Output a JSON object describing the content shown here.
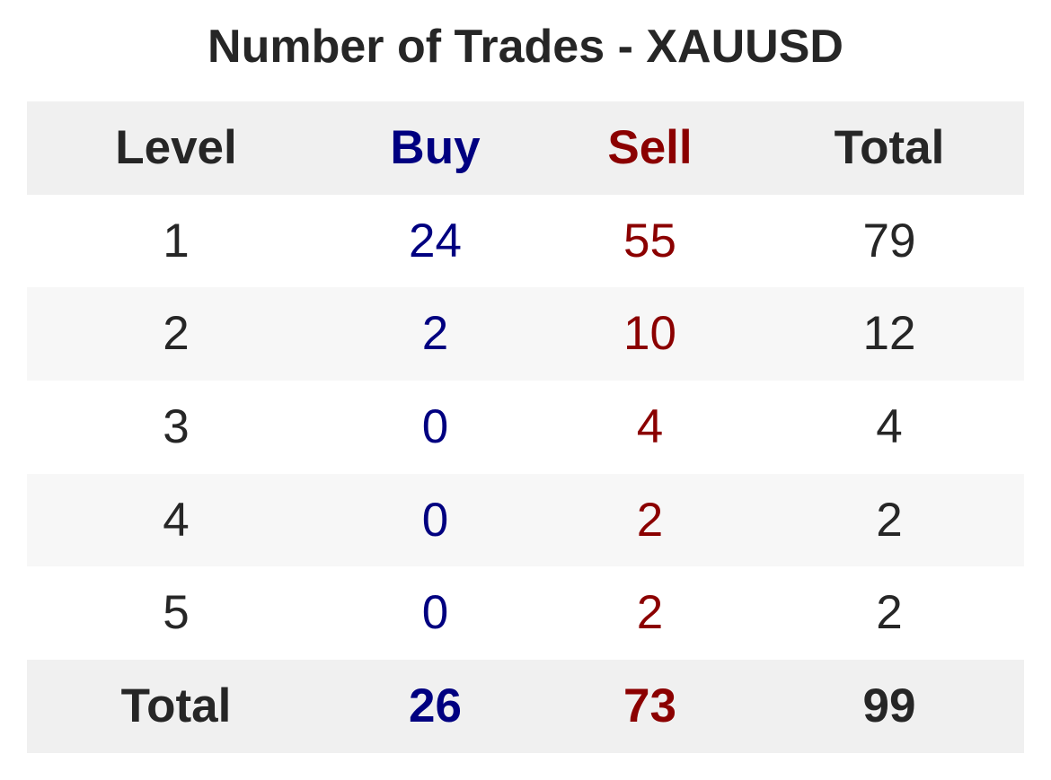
{
  "chart_data": {
    "type": "table",
    "title": "Number of Trades - XAUUSD",
    "columns": [
      "Level",
      "Buy",
      "Sell",
      "Total"
    ],
    "rows": [
      [
        "1",
        "24",
        "55",
        "79"
      ],
      [
        "2",
        "2",
        "10",
        "12"
      ],
      [
        "3",
        "0",
        "4",
        "4"
      ],
      [
        "4",
        "0",
        "2",
        "2"
      ],
      [
        "5",
        "0",
        "2",
        "2"
      ]
    ],
    "total_row": [
      "Total",
      "26",
      "73",
      "99"
    ],
    "colors": {
      "buy": "#000080",
      "sell": "#8b0000",
      "text": "#262626",
      "header_bg": "#f0f0f0",
      "stripe_bg": "#f7f7f7"
    }
  }
}
